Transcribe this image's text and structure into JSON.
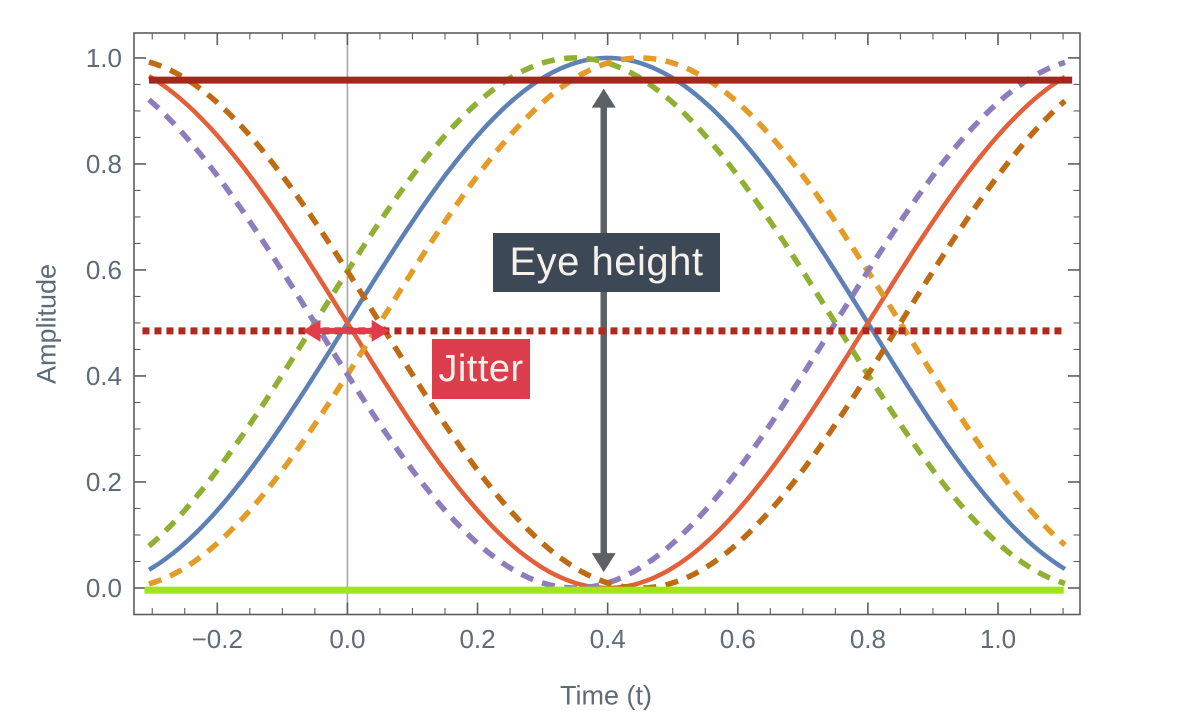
{
  "chart_data": {
    "type": "line",
    "description": "Eye diagram of raised-cosine data transitions with jittered (dashed) traces",
    "xlabel": "Time (t)",
    "ylabel": "Amplitude",
    "xlim": [
      -0.328,
      1.126
    ],
    "ylim": [
      -0.05,
      1.047
    ],
    "x_ticks": [
      -0.2,
      0.0,
      0.2,
      0.4,
      0.6,
      0.8,
      1.0
    ],
    "x_tick_labels": [
      "−0.2",
      "0.0",
      "0.2",
      "0.4",
      "0.6",
      "0.8",
      "1.0"
    ],
    "y_ticks": [
      0.0,
      0.2,
      0.4,
      0.6,
      0.8,
      1.0
    ],
    "y_tick_labels": [
      "0.0",
      "0.2",
      "0.4",
      "0.6",
      "0.8",
      "1.0"
    ],
    "minor_tick_step": 0.05,
    "gridlines_x": [
      0.0
    ],
    "grid_color": "#a8a8a8",
    "axis_color": "#5e5e5e",
    "tick_label_color": "#5f6b77",
    "background": "#ffffff",
    "curve_domain": [
      -0.305,
      1.105
    ],
    "pulse_model": {
      "peak_x": 0.4,
      "period": 1.6,
      "formula": "rise(t)=sin^2(pi*(t-shift+0.4)/1.6); fall(t)=1-rise(t)"
    },
    "series": [
      {
        "name": "rising-edge-nominal",
        "shape": "rise",
        "shift": 0.0,
        "style": "solid",
        "color": "#5e81b5"
      },
      {
        "name": "falling-edge-nominal",
        "shape": "fall",
        "shift": 0.0,
        "style": "solid",
        "color": "#e2603a"
      },
      {
        "name": "rising-edge-early",
        "shape": "rise",
        "shift": -0.05,
        "style": "dashed",
        "color": "#8fb032"
      },
      {
        "name": "rising-edge-late",
        "shape": "rise",
        "shift": 0.05,
        "style": "dashed",
        "color": "#e39c27"
      },
      {
        "name": "falling-edge-early",
        "shape": "fall",
        "shift": -0.05,
        "style": "dashed",
        "color": "#8d7dbd"
      },
      {
        "name": "falling-edge-late",
        "shape": "fall",
        "shift": 0.05,
        "style": "dashed",
        "color": "#bf6b13"
      }
    ],
    "reference_lines": [
      {
        "name": "one-level-line",
        "y": 0.958,
        "x_from": -0.305,
        "x_to": 1.114,
        "style": "solid",
        "color": "#a3271b",
        "width": 7
      },
      {
        "name": "threshold-line",
        "y": 0.485,
        "x_from": -0.315,
        "x_to": 1.101,
        "style": "dotted",
        "color": "#b0291c",
        "width": 7
      },
      {
        "name": "zero-level-line",
        "y": -0.004,
        "x_from": -0.312,
        "x_to": 1.101,
        "style": "solid",
        "color": "#a0e514",
        "width": 7
      }
    ],
    "annotations": [
      {
        "name": "eye-height",
        "label": "Eye height",
        "kind": "vertical-double-arrow",
        "x": 0.394,
        "y_from": 0.03,
        "y_to": 0.942,
        "arrow_color": "#5d6164",
        "box_color": "#3d4857",
        "text_color": "#f7f2e9"
      },
      {
        "name": "jitter",
        "label": "Jitter",
        "kind": "horizontal-double-arrow",
        "y": 0.485,
        "x_from": -0.069,
        "x_to": 0.065,
        "arrow_color": "#e13c4c",
        "box_color": "#dc3d4d",
        "text_color": "#f7f2e9"
      }
    ]
  }
}
